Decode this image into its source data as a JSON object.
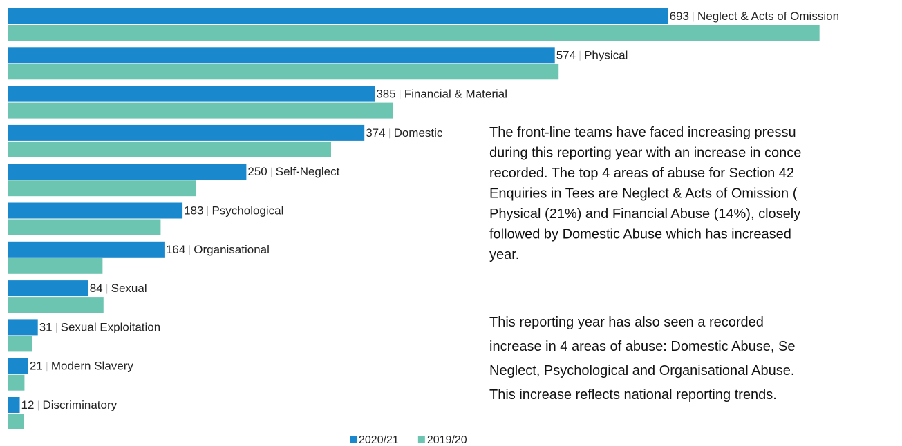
{
  "chart_data": {
    "type": "bar",
    "orientation": "horizontal",
    "categories": [
      "Neglect & Acts of Omission",
      "Physical",
      "Financial & Material",
      "Domestic",
      "Self-Neglect",
      "Psychological",
      "Organisational",
      "Sexual",
      "Sexual Exploitation",
      "Modern Slavery",
      "Discriminatory"
    ],
    "series": [
      {
        "name": "2020/21",
        "color": "#1a88cc",
        "values": [
          693,
          574,
          385,
          374,
          250,
          183,
          164,
          84,
          31,
          21,
          12
        ]
      },
      {
        "name": "2019/20",
        "color": "#6cc5b0",
        "values": [
          852,
          578,
          404,
          339,
          197,
          160,
          99,
          100,
          25,
          17,
          16
        ]
      }
    ],
    "xlim": [
      0,
      935
    ],
    "annotations": [
      [
        "The front-line teams have faced increasing pressu",
        "during this reporting year with an increase in conce",
        "recorded. The top 4 areas of abuse for Section 42",
        "Enquiries in Tees are Neglect & Acts of Omission (",
        "Physical (21%) and Financial Abuse (14%), closely",
        "followed by Domestic Abuse which has increased",
        "year."
      ],
      [
        "This reporting year has also seen a recorded",
        "increase in 4 areas of abuse: Domestic Abuse, Se",
        "Neglect, Psychological and Organisational Abuse.",
        "This increase reflects national reporting trends."
      ]
    ]
  }
}
